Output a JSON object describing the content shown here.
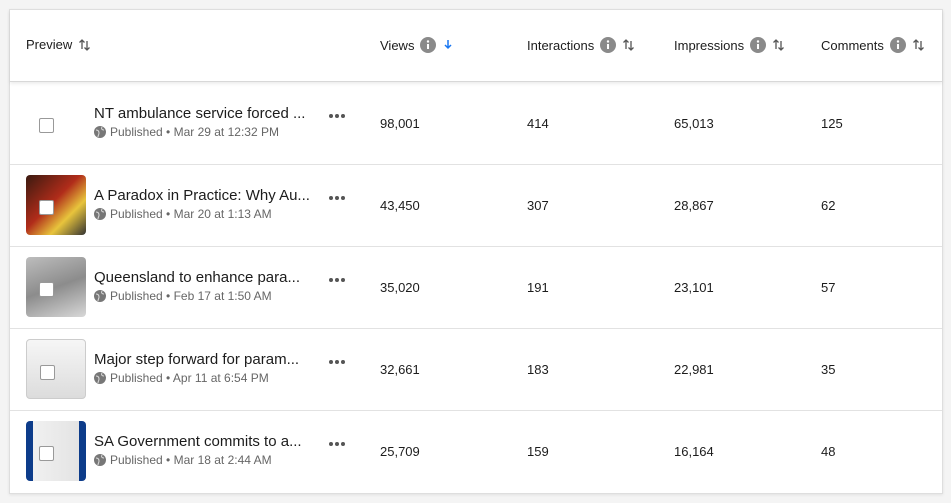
{
  "table": {
    "columns": [
      "Preview",
      "Views",
      "Interactions",
      "Impressions",
      "Comments"
    ],
    "rows": [
      {
        "title": "NT ambulance service forced ...",
        "meta": "Published • Mar 29 at 12:32 PM",
        "cells": [
          "98,001",
          "414",
          "65,013",
          "125"
        ]
      },
      {
        "title": "A Paradox in Practice: Why Au...",
        "meta": "Published • Mar 20 at 1:13 AM",
        "cells": [
          "43,450",
          "307",
          "28,867",
          "62"
        ]
      },
      {
        "title": "Queensland to enhance para...",
        "meta": "Published • Feb 17 at 1:50 AM",
        "cells": [
          "35,020",
          "191",
          "23,101",
          "57"
        ]
      },
      {
        "title": "Major step forward for param...",
        "meta": "Published • Apr 11 at 6:54 PM",
        "cells": [
          "32,661",
          "183",
          "22,981",
          "35"
        ]
      },
      {
        "title": "SA Government commits to a...",
        "meta": "Published • Mar 18 at 2:44 AM",
        "cells": [
          "25,709",
          "159",
          "16,164",
          "48"
        ]
      }
    ]
  }
}
